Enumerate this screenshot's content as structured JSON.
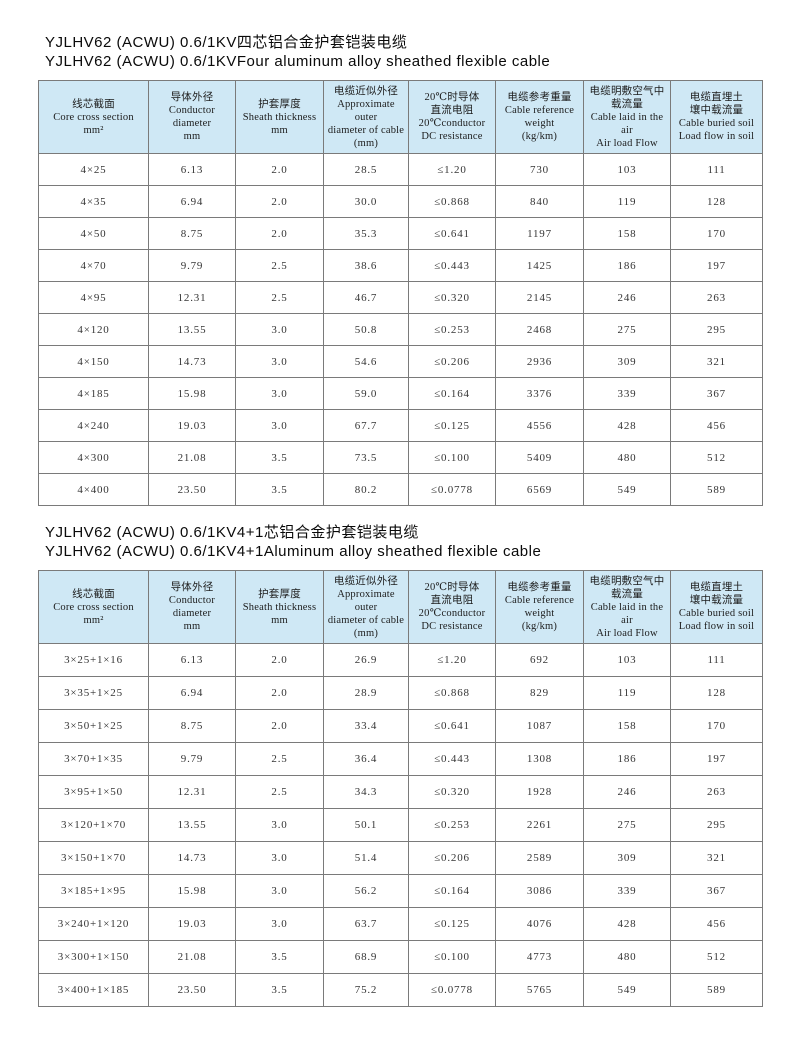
{
  "colors": {
    "page_bg": "#ffffff",
    "header_bg": "#cfe8f5",
    "border": "#7a7a7a",
    "title_text": "#0a0a0a",
    "cell_text": "#353535"
  },
  "headers": [
    {
      "text": "线芯截面\nCore cross section\nmm²"
    },
    {
      "text": "导体外径\nConductor\ndiameter\nmm"
    },
    {
      "text": "护套厚度\nSheath thickness\nmm"
    },
    {
      "text": "电缆近似外径\nApproximate outer\ndiameter of cable\n(mm)"
    },
    {
      "text": "20℃时导体\n直流电阻\n20℃conductor\nDC resistance"
    },
    {
      "text": "电缆参考重量\nCable reference\nweight\n(kg/km)"
    },
    {
      "text": "电缆明敷空气中\n载流量\nCable laid in the air\nAir load Flow"
    },
    {
      "text": "电缆直埋土\n壤中载流量\nCable buried soil\nLoad flow in soil"
    }
  ],
  "sections": [
    {
      "title_cn": "YJLHV62 (ACWU) 0.6/1KV四芯铝合金护套铠装电缆",
      "title_en": "YJLHV62 (ACWU) 0.6/1KVFour aluminum alloy sheathed flexible cable",
      "rows": [
        [
          "4×25",
          "6.13",
          "2.0",
          "28.5",
          "≤1.20",
          "730",
          "103",
          "111"
        ],
        [
          "4×35",
          "6.94",
          "2.0",
          "30.0",
          "≤0.868",
          "840",
          "119",
          "128"
        ],
        [
          "4×50",
          "8.75",
          "2.0",
          "35.3",
          "≤0.641",
          "1197",
          "158",
          "170"
        ],
        [
          "4×70",
          "9.79",
          "2.5",
          "38.6",
          "≤0.443",
          "1425",
          "186",
          "197"
        ],
        [
          "4×95",
          "12.31",
          "2.5",
          "46.7",
          "≤0.320",
          "2145",
          "246",
          "263"
        ],
        [
          "4×120",
          "13.55",
          "3.0",
          "50.8",
          "≤0.253",
          "2468",
          "275",
          "295"
        ],
        [
          "4×150",
          "14.73",
          "3.0",
          "54.6",
          "≤0.206",
          "2936",
          "309",
          "321"
        ],
        [
          "4×185",
          "15.98",
          "3.0",
          "59.0",
          "≤0.164",
          "3376",
          "339",
          "367"
        ],
        [
          "4×240",
          "19.03",
          "3.0",
          "67.7",
          "≤0.125",
          "4556",
          "428",
          "456"
        ],
        [
          "4×300",
          "21.08",
          "3.5",
          "73.5",
          "≤0.100",
          "5409",
          "480",
          "512"
        ],
        [
          "4×400",
          "23.50",
          "3.5",
          "80.2",
          "≤0.0778",
          "6569",
          "549",
          "589"
        ]
      ]
    },
    {
      "title_cn": "YJLHV62 (ACWU) 0.6/1KV4+1芯铝合金护套铠装电缆",
      "title_en": "YJLHV62 (ACWU) 0.6/1KV4+1Aluminum alloy sheathed flexible cable",
      "rows": [
        [
          "3×25+1×16",
          "6.13",
          "2.0",
          "26.9",
          "≤1.20",
          "692",
          "103",
          "111"
        ],
        [
          "3×35+1×25",
          "6.94",
          "2.0",
          "28.9",
          "≤0.868",
          "829",
          "119",
          "128"
        ],
        [
          "3×50+1×25",
          "8.75",
          "2.0",
          "33.4",
          "≤0.641",
          "1087",
          "158",
          "170"
        ],
        [
          "3×70+1×35",
          "9.79",
          "2.5",
          "36.4",
          "≤0.443",
          "1308",
          "186",
          "197"
        ],
        [
          "3×95+1×50",
          "12.31",
          "2.5",
          "34.3",
          "≤0.320",
          "1928",
          "246",
          "263"
        ],
        [
          "3×120+1×70",
          "13.55",
          "3.0",
          "50.1",
          "≤0.253",
          "2261",
          "275",
          "295"
        ],
        [
          "3×150+1×70",
          "14.73",
          "3.0",
          "51.4",
          "≤0.206",
          "2589",
          "309",
          "321"
        ],
        [
          "3×185+1×95",
          "15.98",
          "3.0",
          "56.2",
          "≤0.164",
          "3086",
          "339",
          "367"
        ],
        [
          "3×240+1×120",
          "19.03",
          "3.0",
          "63.7",
          "≤0.125",
          "4076",
          "428",
          "456"
        ],
        [
          "3×300+1×150",
          "21.08",
          "3.5",
          "68.9",
          "≤0.100",
          "4773",
          "480",
          "512"
        ],
        [
          "3×400+1×185",
          "23.50",
          "3.5",
          "75.2",
          "≤0.0778",
          "5765",
          "549",
          "589"
        ]
      ]
    }
  ]
}
